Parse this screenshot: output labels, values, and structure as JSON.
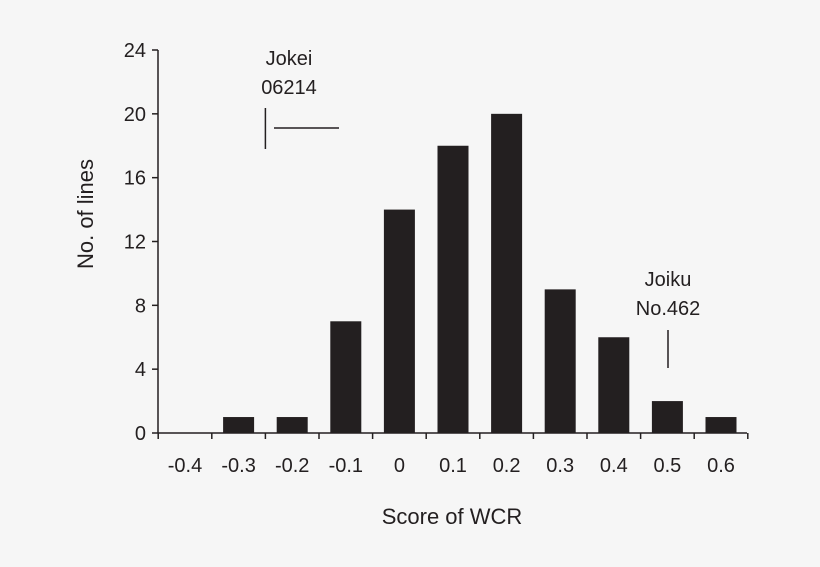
{
  "chart_data": {
    "type": "bar",
    "xlabel": "Score of WCR",
    "ylabel": "No. of lines",
    "ylim": [
      0,
      24
    ],
    "yticks": [
      0,
      4,
      8,
      12,
      16,
      20,
      24
    ],
    "categories": [
      "-0.4",
      "-0.3",
      "-0.2",
      "-0.1",
      "0",
      "0.1",
      "0.2",
      "0.3",
      "0.4",
      "0.5",
      "0.6"
    ],
    "values": [
      0,
      1,
      1,
      7,
      14,
      18,
      20,
      9,
      6,
      2,
      1
    ],
    "bar_color": "#231f20",
    "annotations": [
      {
        "lines": [
          "Jokei",
          "06214"
        ],
        "marker": "cross",
        "x": -0.25,
        "y": 19.0
      },
      {
        "lines": [
          "Joiku",
          "No.462"
        ],
        "marker": "vline",
        "x": 0.475,
        "y": 5.0
      }
    ],
    "grid": false,
    "legend": "none"
  }
}
